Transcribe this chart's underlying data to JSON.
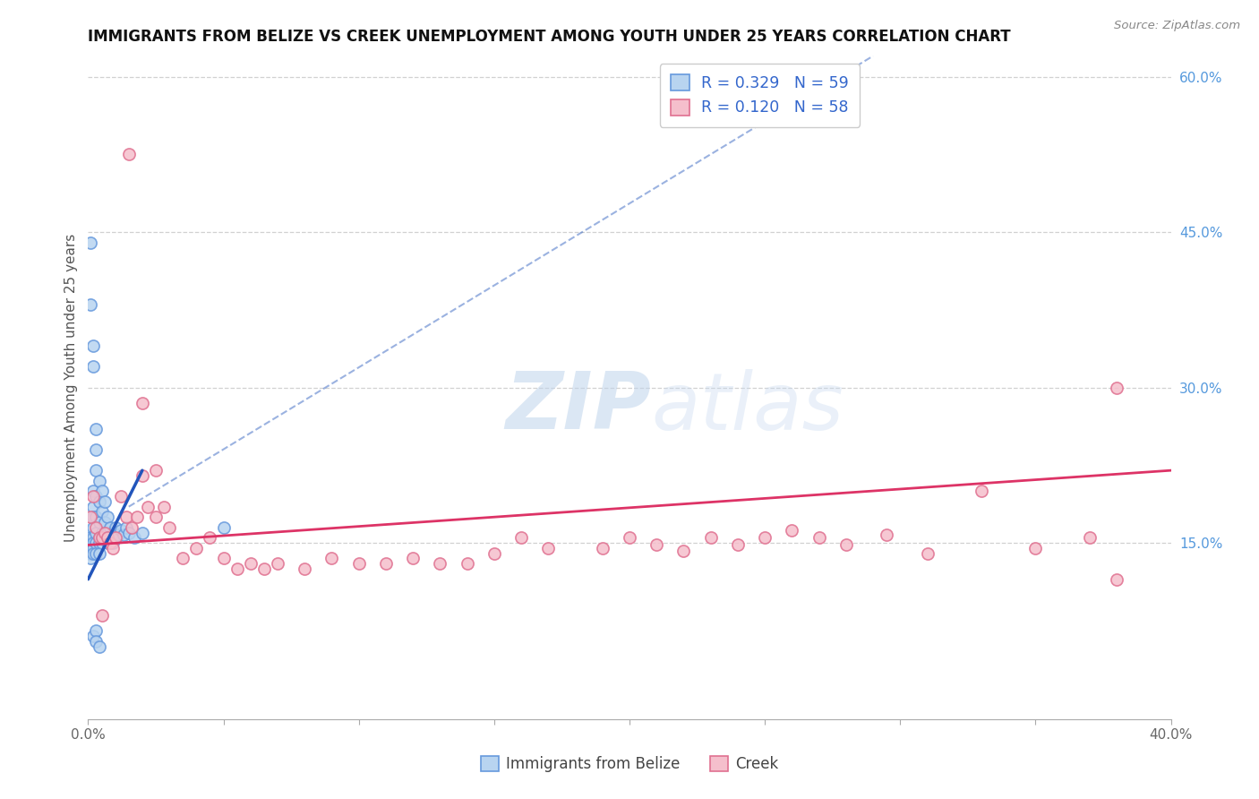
{
  "title": "IMMIGRANTS FROM BELIZE VS CREEK UNEMPLOYMENT AMONG YOUTH UNDER 25 YEARS CORRELATION CHART",
  "source": "Source: ZipAtlas.com",
  "ylabel": "Unemployment Among Youth under 25 years",
  "xlim": [
    0.0,
    0.4
  ],
  "ylim": [
    -0.02,
    0.62
  ],
  "series1_label": "Immigrants from Belize",
  "series2_label": "Creek",
  "series1_color": "#b8d4f0",
  "series2_color": "#f5bfcc",
  "series1_edge_color": "#6699dd",
  "series2_edge_color": "#e07090",
  "trend1_color": "#2255bb",
  "trend2_color": "#dd3366",
  "watermark_zip": "ZIP",
  "watermark_atlas": "atlas",
  "grid_color": "#cccccc",
  "background_color": "#ffffff",
  "legend_R1": "R = 0.329",
  "legend_N1": "N = 59",
  "legend_R2": "R = 0.120",
  "legend_N2": "N = 58",
  "ytick_labels": [
    "",
    "15.0%",
    "30.0%",
    "45.0%",
    "60.0%"
  ],
  "ytick_vals": [
    0.0,
    0.15,
    0.3,
    0.45,
    0.6
  ],
  "series1_x": [
    0.001,
    0.001,
    0.001,
    0.001,
    0.001,
    0.002,
    0.002,
    0.002,
    0.002,
    0.002,
    0.002,
    0.002,
    0.002,
    0.003,
    0.003,
    0.003,
    0.003,
    0.003,
    0.003,
    0.003,
    0.003,
    0.004,
    0.004,
    0.004,
    0.004,
    0.004,
    0.004,
    0.005,
    0.005,
    0.005,
    0.005,
    0.006,
    0.006,
    0.006,
    0.007,
    0.007,
    0.007,
    0.008,
    0.008,
    0.009,
    0.009,
    0.01,
    0.01,
    0.011,
    0.012,
    0.013,
    0.014,
    0.015,
    0.017,
    0.02,
    0.001,
    0.001,
    0.002,
    0.002,
    0.002,
    0.003,
    0.003,
    0.004,
    0.05
  ],
  "series1_y": [
    0.155,
    0.15,
    0.145,
    0.14,
    0.135,
    0.2,
    0.185,
    0.175,
    0.165,
    0.155,
    0.15,
    0.145,
    0.14,
    0.26,
    0.24,
    0.22,
    0.195,
    0.175,
    0.16,
    0.15,
    0.14,
    0.21,
    0.19,
    0.17,
    0.155,
    0.15,
    0.14,
    0.2,
    0.18,
    0.16,
    0.15,
    0.19,
    0.17,
    0.155,
    0.175,
    0.16,
    0.15,
    0.165,
    0.155,
    0.16,
    0.15,
    0.165,
    0.155,
    0.158,
    0.162,
    0.158,
    0.165,
    0.16,
    0.155,
    0.16,
    0.44,
    0.38,
    0.34,
    0.32,
    0.06,
    0.065,
    0.055,
    0.05,
    0.165
  ],
  "series2_x": [
    0.001,
    0.002,
    0.003,
    0.004,
    0.005,
    0.006,
    0.007,
    0.008,
    0.009,
    0.01,
    0.012,
    0.014,
    0.016,
    0.018,
    0.02,
    0.022,
    0.025,
    0.028,
    0.03,
    0.035,
    0.04,
    0.045,
    0.05,
    0.055,
    0.06,
    0.065,
    0.07,
    0.08,
    0.09,
    0.1,
    0.11,
    0.12,
    0.13,
    0.14,
    0.15,
    0.16,
    0.17,
    0.19,
    0.2,
    0.21,
    0.22,
    0.23,
    0.24,
    0.25,
    0.26,
    0.27,
    0.28,
    0.295,
    0.31,
    0.33,
    0.35,
    0.37,
    0.38,
    0.015,
    0.02,
    0.025,
    0.38,
    0.005
  ],
  "series2_y": [
    0.175,
    0.195,
    0.165,
    0.155,
    0.155,
    0.16,
    0.155,
    0.15,
    0.145,
    0.155,
    0.195,
    0.175,
    0.165,
    0.175,
    0.215,
    0.185,
    0.175,
    0.185,
    0.165,
    0.135,
    0.145,
    0.155,
    0.135,
    0.125,
    0.13,
    0.125,
    0.13,
    0.125,
    0.135,
    0.13,
    0.13,
    0.135,
    0.13,
    0.13,
    0.14,
    0.155,
    0.145,
    0.145,
    0.155,
    0.148,
    0.142,
    0.155,
    0.148,
    0.155,
    0.162,
    0.155,
    0.148,
    0.158,
    0.14,
    0.2,
    0.145,
    0.155,
    0.3,
    0.525,
    0.285,
    0.22,
    0.115,
    0.08
  ],
  "trend1_x0": 0.0,
  "trend1_y0": 0.115,
  "trend1_x1": 0.02,
  "trend1_y1": 0.22,
  "trend1_dash_x0": 0.015,
  "trend1_dash_y0": 0.185,
  "trend1_dash_x1": 0.29,
  "trend1_dash_y1": 0.62,
  "trend2_x0": 0.0,
  "trend2_y0": 0.148,
  "trend2_x1": 0.4,
  "trend2_y1": 0.22
}
